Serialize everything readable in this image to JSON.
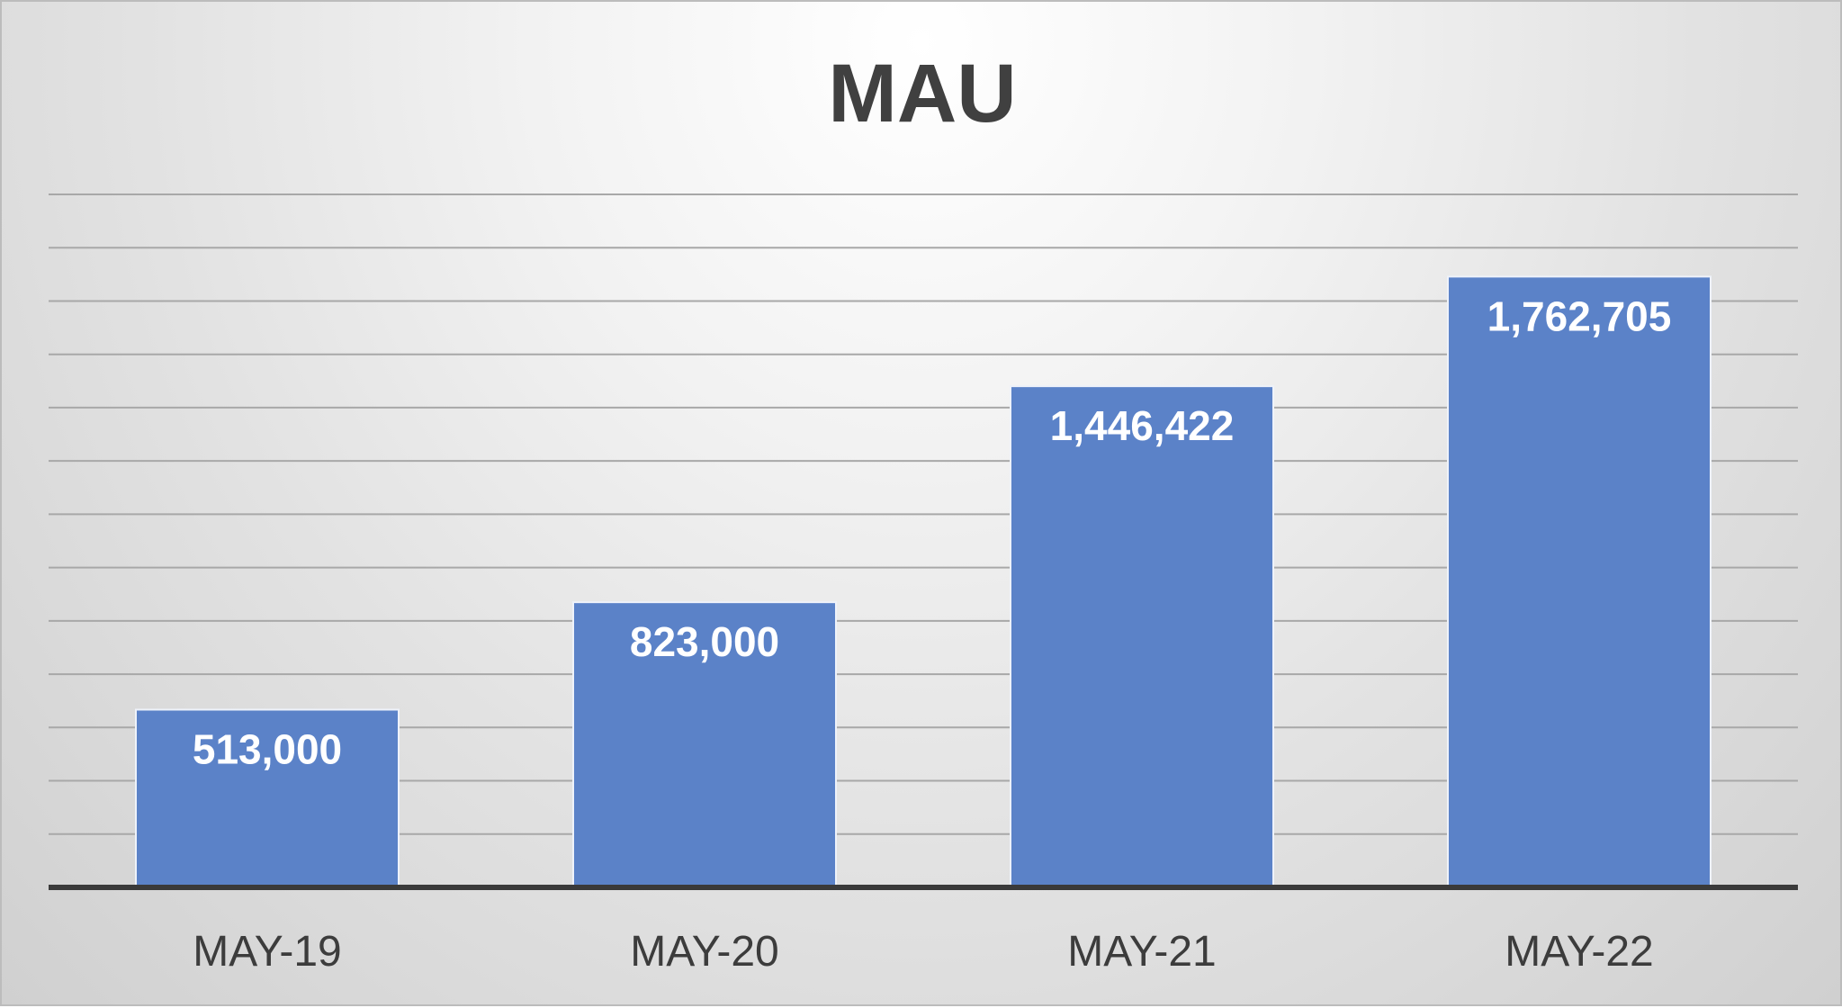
{
  "chart_data": {
    "type": "bar",
    "title": "MAU",
    "xlabel": "",
    "ylabel": "",
    "categories": [
      "MAY-19",
      "MAY-20",
      "MAY-21",
      "MAY-22"
    ],
    "values": [
      513000,
      823000,
      1446422,
      1762705
    ],
    "data_labels": [
      "513,000",
      "823,000",
      "1,446,422",
      "1,762,705"
    ],
    "ylim": [
      0,
      2000000
    ],
    "grid": true,
    "legend": "none",
    "colors": {
      "bar": "#5b82c8",
      "title": "#404040",
      "gridline": "#a8a8a8",
      "baseline": "#3a3a3a"
    }
  }
}
